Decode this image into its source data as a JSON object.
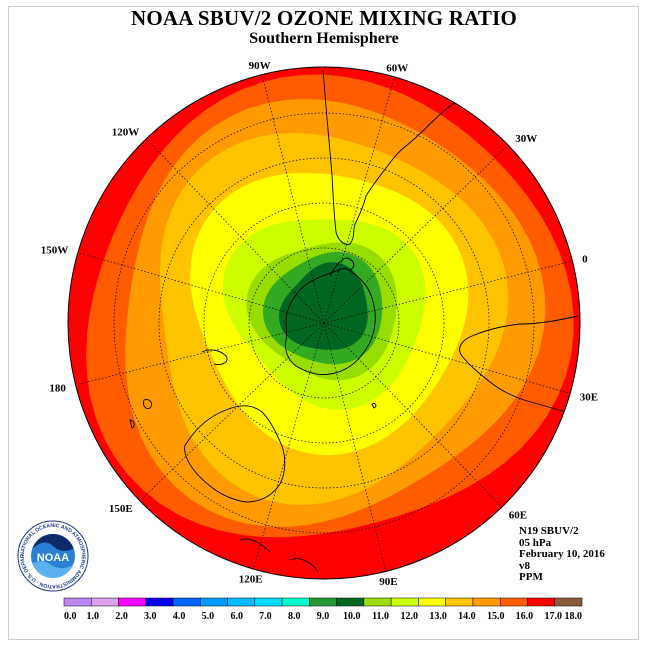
{
  "header": {
    "title": "NOAA SBUV/2 OZONE MIXING RATIO",
    "subtitle": "Southern Hemisphere"
  },
  "map": {
    "projection": "south-polar-stereographic",
    "longitude_labels": [
      {
        "text": "0",
        "lon": 0
      },
      {
        "text": "30E",
        "lon": 30
      },
      {
        "text": "60E",
        "lon": 60
      },
      {
        "text": "90E",
        "lon": 90
      },
      {
        "text": "120E",
        "lon": 120
      },
      {
        "text": "150E",
        "lon": 150
      },
      {
        "text": "180",
        "lon": 180
      },
      {
        "text": "150W",
        "lon": -150
      },
      {
        "text": "120W",
        "lon": -120
      },
      {
        "text": "90W",
        "lon": -90
      },
      {
        "text": "60W",
        "lon": -60
      },
      {
        "text": "30W",
        "lon": -30
      }
    ],
    "contour_levels_ppm": [
      {
        "value": 16.0,
        "color": "#ff0000"
      },
      {
        "value": 15.0,
        "color": "#ff5c00"
      },
      {
        "value": 14.0,
        "color": "#ff9a00"
      },
      {
        "value": 13.0,
        "color": "#ffc300"
      },
      {
        "value": 12.0,
        "color": "#ffff00"
      },
      {
        "value": 11.0,
        "color": "#ccff00"
      },
      {
        "value": 10.0,
        "color": "#99dd00"
      },
      {
        "value": 9.0,
        "color": "#33aa22"
      },
      {
        "value": 8.0,
        "color": "#006622"
      }
    ]
  },
  "info": {
    "instrument": "N19 SBUV/2",
    "pressure": "05 hPa",
    "date": "February 10, 2016",
    "version": "v8",
    "units": "PPM"
  },
  "colorbar": {
    "labels": [
      "0.0",
      "1.0",
      "2.0",
      "3.0",
      "4.0",
      "5.0",
      "6.0",
      "7.0",
      "8.0",
      "9.0",
      "10.0",
      "11.0",
      "12.0",
      "13.0",
      "14.0",
      "15.0",
      "16.0",
      "17.0",
      "18.0"
    ],
    "colors": [
      "#bb88ee",
      "#dda0ee",
      "#ff00ff",
      "#0000ee",
      "#0066ff",
      "#0099ff",
      "#00bbff",
      "#00ddff",
      "#00ffcc",
      "#229933",
      "#006622",
      "#99dd00",
      "#ccff00",
      "#ffff00",
      "#ffc300",
      "#ff9a00",
      "#ff5c00",
      "#ff0000",
      "#8b5a3c"
    ]
  },
  "logo": {
    "text": "NOAA",
    "ring_text": "NATIONAL OCEANIC AND ATMOSPHERIC ADMINISTRATION · U.S. DEPARTMENT OF COMMERCE"
  }
}
